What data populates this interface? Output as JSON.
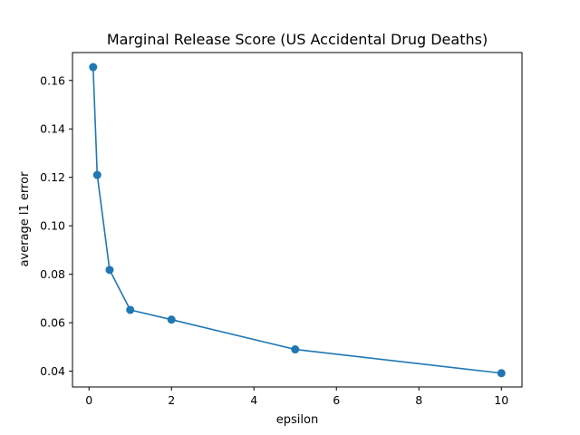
{
  "chart_data": {
    "type": "line",
    "title": "Marginal Release Score (US Accidental Drug Deaths)",
    "xlabel": "epsilon",
    "ylabel": "average l1 error",
    "xlim": [
      -0.4,
      10.5
    ],
    "ylim": [
      0.0335,
      0.1715
    ],
    "xticks": [
      0,
      2,
      4,
      6,
      8,
      10
    ],
    "xtick_labels": [
      "0",
      "2",
      "4",
      "6",
      "8",
      "10"
    ],
    "yticks": [
      0.04,
      0.06,
      0.08,
      0.1,
      0.12,
      0.14,
      0.16
    ],
    "ytick_labels": [
      "0.04",
      "0.06",
      "0.08",
      "0.10",
      "0.12",
      "0.14",
      "0.16"
    ],
    "grid": false,
    "legend": null,
    "series": [
      {
        "color": "#1f77b4",
        "marker": "circle",
        "x": [
          0.1,
          0.2,
          0.5,
          1,
          2,
          5,
          10
        ],
        "y": [
          0.1655,
          0.121,
          0.0818,
          0.0653,
          0.0613,
          0.049,
          0.0392
        ]
      }
    ]
  }
}
